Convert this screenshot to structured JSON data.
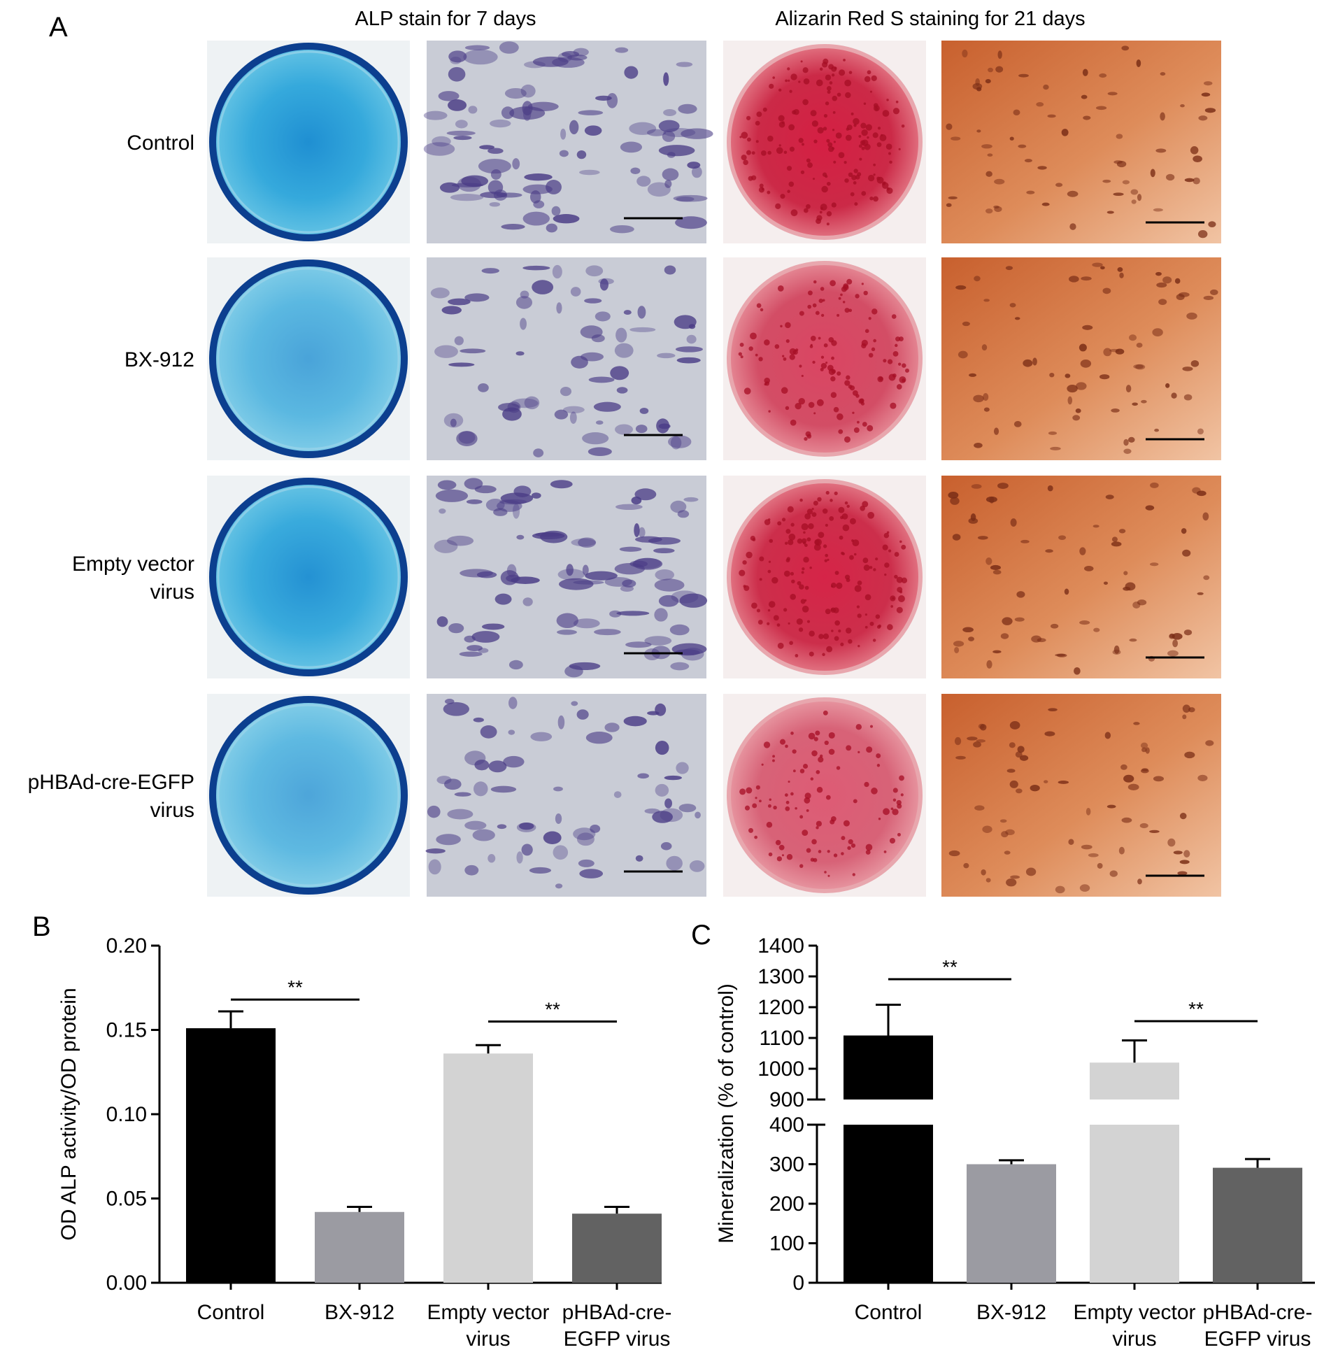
{
  "panel_a": {
    "letter": "A",
    "col_headers": [
      "ALP stain for 7 days",
      "Alizarin Red S staining for 21 days"
    ],
    "rows": [
      {
        "label_lines": [
          "Control"
        ],
        "alp_intensity": 1.0,
        "ars_intensity": 0.9
      },
      {
        "label_lines": [
          "BX-912"
        ],
        "alp_intensity": 0.55,
        "ars_intensity": 0.55
      },
      {
        "label_lines": [
          "Empty vector",
          "virus"
        ],
        "alp_intensity": 0.95,
        "ars_intensity": 0.85
      },
      {
        "label_lines": [
          "pHBAd-cre-EGFP",
          "virus"
        ],
        "alp_intensity": 0.5,
        "ars_intensity": 0.35
      }
    ],
    "colors": {
      "alp_plate": "#2aa4d8",
      "alp_ring": "#0c3f8f",
      "alp_micro_bg": "#c9ccd6",
      "alp_cells": "#4a3c86",
      "ars_plate": "#c81c3a",
      "ars_micro": "#d77a4a",
      "scale_bar": "#000000"
    }
  },
  "chart_data": [
    {
      "panel": "B",
      "type": "bar",
      "categories": [
        [
          "Control"
        ],
        [
          "BX-912"
        ],
        [
          "Empty vector",
          "virus"
        ],
        [
          "pHBAd-cre-",
          "EGFP virus"
        ]
      ],
      "values": [
        0.151,
        0.042,
        0.136,
        0.041
      ],
      "errors": [
        0.01,
        0.003,
        0.005,
        0.004
      ],
      "colors": [
        "#000000",
        "#9b9ba2",
        "#d3d3d3",
        "#626262"
      ],
      "ylabel": "OD ALP activity/OD protein",
      "ylim": [
        0,
        0.2
      ],
      "yticks": [
        "0.00",
        "0.05",
        "0.10",
        "0.15",
        "0.20"
      ],
      "ytick_values": [
        0,
        0.05,
        0.1,
        0.15,
        0.2
      ],
      "significance": [
        {
          "from": 0,
          "to": 1,
          "label": "**"
        },
        {
          "from": 2,
          "to": 3,
          "label": "**"
        }
      ]
    },
    {
      "panel": "C",
      "type": "bar",
      "categories": [
        [
          "Control"
        ],
        [
          "BX-912"
        ],
        [
          "Empty vector",
          "virus"
        ],
        [
          "pHBAd-cre-",
          "EGFP virus"
        ]
      ],
      "values": [
        1108,
        300,
        1020,
        291
      ],
      "errors": [
        100,
        10,
        72,
        22
      ],
      "colors": [
        "#000000",
        "#9b9ba2",
        "#d3d3d3",
        "#626262"
      ],
      "ylabel": "Mineralization (% of control)",
      "axis_break": {
        "lower_range": [
          0,
          400
        ],
        "upper_range": [
          900,
          1400
        ]
      },
      "yticks_lower": [
        "0",
        "100",
        "200",
        "300",
        "400"
      ],
      "ytick_values_lower": [
        0,
        100,
        200,
        300,
        400
      ],
      "yticks_upper": [
        "900",
        "1000",
        "1100",
        "1200",
        "1300",
        "1400"
      ],
      "ytick_values_upper": [
        900,
        1000,
        1100,
        1200,
        1300,
        1400
      ],
      "significance": [
        {
          "from": 0,
          "to": 1,
          "label": "**"
        },
        {
          "from": 2,
          "to": 3,
          "label": "**"
        }
      ]
    }
  ]
}
